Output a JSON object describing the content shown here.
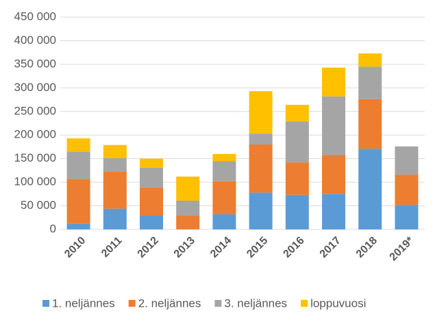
{
  "chart_data": {
    "type": "stacked_bar",
    "categories": [
      "2010",
      "2011",
      "2012",
      "2013",
      "2014",
      "2015",
      "2016",
      "2017",
      "2018",
      "2019*"
    ],
    "series": [
      {
        "name": "1. neljännes",
        "color": "#5b9bd5",
        "values": [
          12000,
          44000,
          29000,
          0,
          32000,
          78000,
          73000,
          75000,
          171000,
          52000
        ]
      },
      {
        "name": "2. neljännes",
        "color": "#ed7d31",
        "values": [
          95000,
          79000,
          60000,
          29000,
          70000,
          102000,
          69000,
          83000,
          105000,
          64000
        ]
      },
      {
        "name": "3. neljännes",
        "color": "#a5a5a5",
        "values": [
          58000,
          28000,
          42000,
          32000,
          43000,
          23000,
          87000,
          124000,
          69000,
          60000
        ]
      },
      {
        "name": "loppuvuosi",
        "color": "#ffc000",
        "values": [
          28000,
          28000,
          19000,
          51000,
          15000,
          90000,
          35000,
          61000,
          28000,
          0
        ]
      }
    ],
    "ylim": [
      0,
      450000
    ],
    "yticks": [
      0,
      {
        "value": 50000,
        "label": "50 000"
      },
      {
        "value": 100000,
        "label": "100 000"
      },
      {
        "value": 150000,
        "label": "150 000"
      },
      {
        "value": 200000,
        "label": "200 000"
      },
      {
        "value": 250000,
        "label": "250 000"
      },
      {
        "value": 300000,
        "label": "300 000"
      },
      {
        "value": 350000,
        "label": "350 000"
      },
      {
        "value": 400000,
        "label": "400 000"
      },
      {
        "value": 450000,
        "label": "450 000"
      }
    ],
    "grid": true,
    "legend": "bottom"
  }
}
